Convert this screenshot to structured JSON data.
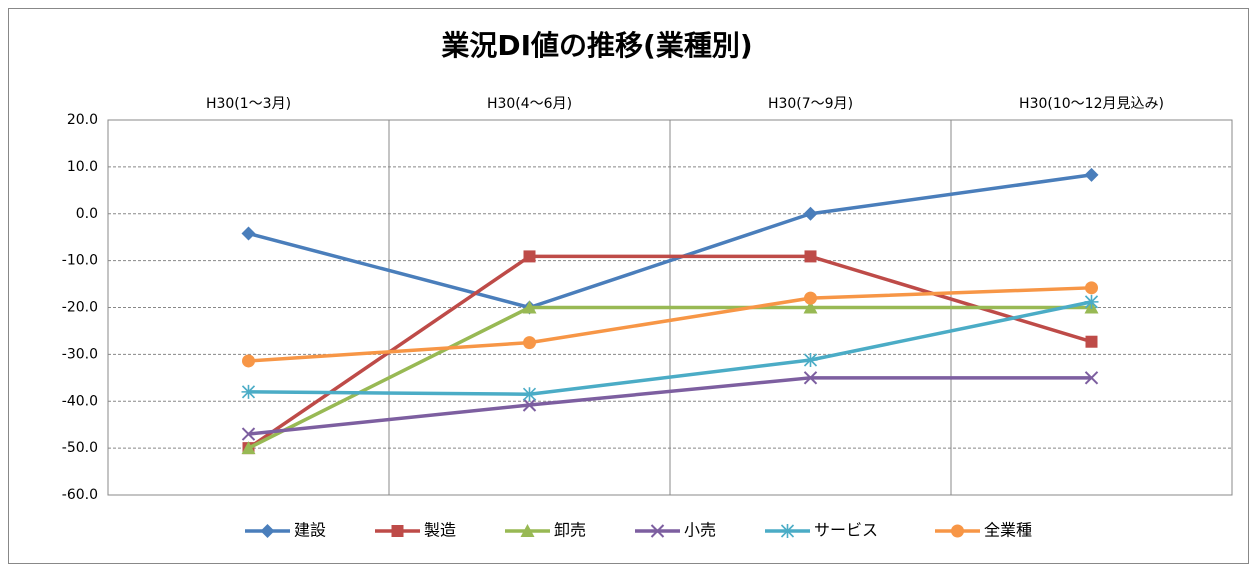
{
  "chart_data": {
    "type": "line",
    "title": "業況DI値の推移(業種別)",
    "categories": [
      "H30(1〜3月)",
      "H30(4〜6月)",
      "H30(7〜9月)",
      "H30(10〜12月見込み)"
    ],
    "series": [
      {
        "name": "建設",
        "color": "#4a7ebb",
        "marker": "diamond",
        "values": [
          -4.2,
          -20,
          0,
          8.3
        ]
      },
      {
        "name": "製造",
        "color": "#be4b48",
        "marker": "square",
        "values": [
          -50,
          -9.1,
          -9.1,
          -27.3
        ]
      },
      {
        "name": "卸売",
        "color": "#98b954",
        "marker": "triangle",
        "values": [
          -50,
          -20,
          -20,
          -20
        ]
      },
      {
        "name": "小売",
        "color": "#7d5fa0",
        "marker": "x",
        "values": [
          -47,
          -40.8,
          -35,
          -35
        ]
      },
      {
        "name": "サービス",
        "color": "#4bacc6",
        "marker": "star",
        "values": [
          -38,
          -38.5,
          -31.2,
          -18.8
        ]
      },
      {
        "name": "全業種",
        "color": "#f79646",
        "marker": "circle",
        "values": [
          -31.4,
          -27.5,
          -18,
          -15.8
        ]
      }
    ],
    "ylim": [
      -60,
      20
    ],
    "yticks": [
      {
        "value": -60,
        "label": "-60.0"
      },
      {
        "value": -50,
        "label": "-50.0"
      },
      {
        "value": -40,
        "label": "-40.0"
      },
      {
        "value": -30,
        "label": "-30.0"
      },
      {
        "value": -20,
        "label": "-20.0"
      },
      {
        "value": -10,
        "label": "-10.0"
      },
      {
        "value": 0,
        "label": "0.0"
      },
      {
        "value": 10,
        "label": "10.0"
      },
      {
        "value": 20,
        "label": "20.0"
      }
    ],
    "grid": true,
    "legend": "bottom"
  }
}
